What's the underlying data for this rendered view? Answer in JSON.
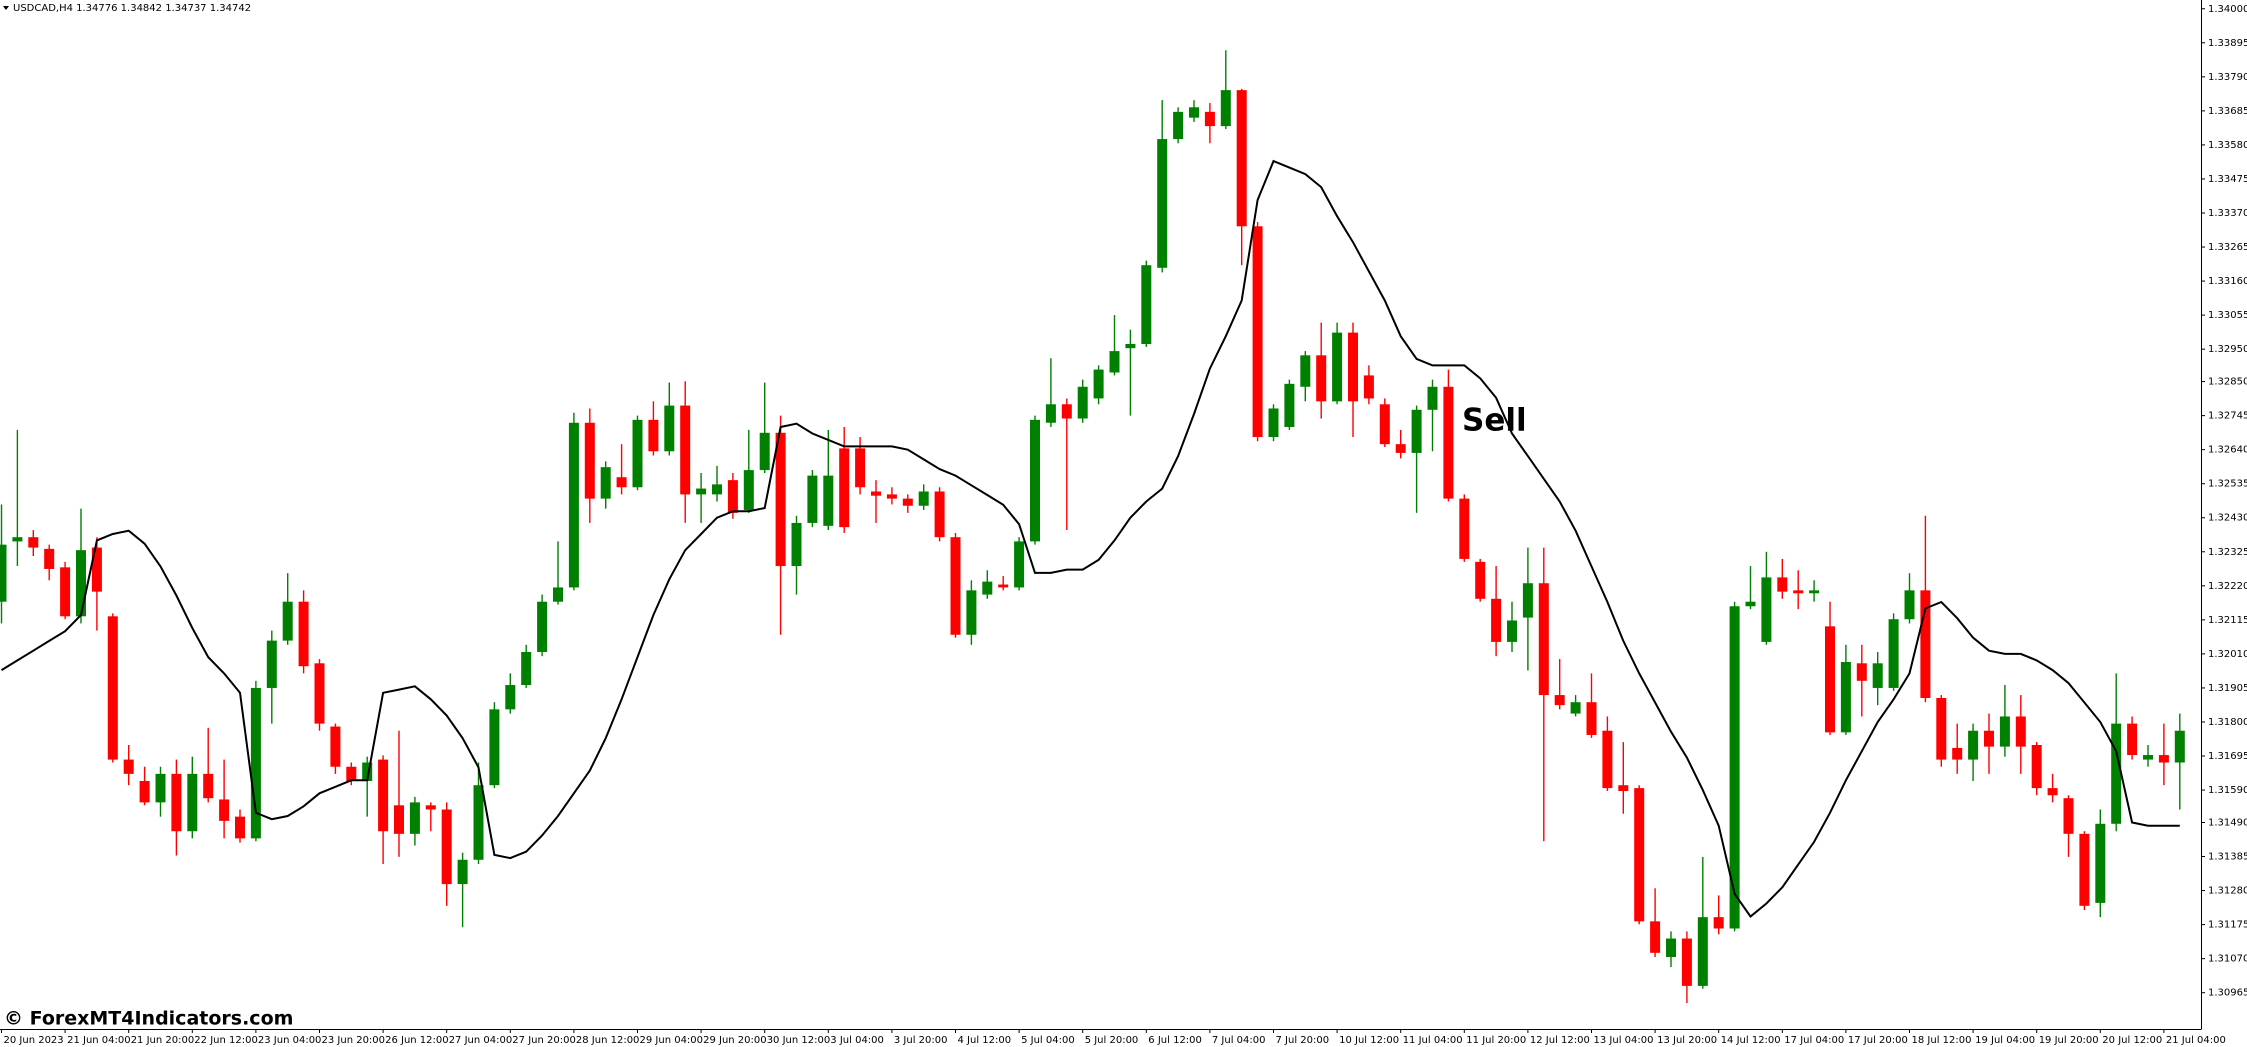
{
  "chart_data": {
    "type": "candlestick",
    "title": "USDCAD,H4  1.34776 1.34842 1.34737 1.34742",
    "annotation": "Sell",
    "watermark": "© ForexMT4Indicators.com",
    "up_color": "#008000",
    "down_color": "#ff0000",
    "line_color": "#000000",
    "ylim": [
      1.30853,
      1.34027
    ],
    "yticks": [
      {
        "value": 1.34,
        "label": "1.34000"
      },
      1.33895,
      {
        "value": 1.3379,
        "label": "1.33790"
      },
      1.33685,
      {
        "value": 1.3358,
        "label": "1.33580"
      },
      1.33475,
      {
        "value": 1.3337,
        "label": "1.33370"
      },
      1.33265,
      {
        "value": 1.3316,
        "label": "1.33160"
      },
      1.33055,
      {
        "value": 1.3295,
        "label": "1.32950"
      },
      {
        "value": 1.3285,
        "label": "1.32850"
      },
      1.32745,
      {
        "value": 1.3264,
        "label": "1.32640"
      },
      1.32535,
      {
        "value": 1.3243,
        "label": "1.32430"
      },
      1.32325,
      {
        "value": 1.3222,
        "label": "1.32220"
      },
      1.32115,
      {
        "value": 1.3201,
        "label": "1.32010"
      },
      1.31905,
      {
        "value": 1.318,
        "label": "1.31800"
      },
      1.31695,
      {
        "value": 1.3159,
        "label": "1.31590"
      },
      {
        "value": 1.3149,
        "label": "1.31490"
      },
      1.31385,
      {
        "value": 1.3128,
        "label": "1.31280"
      },
      1.31175,
      {
        "value": 1.3107,
        "label": "1.31070"
      },
      1.30965
    ],
    "categories": [
      "20 Jun 2023",
      null,
      null,
      null,
      "21 Jun 04:00",
      null,
      null,
      null,
      "21 Jun 20:00",
      null,
      null,
      null,
      "22 Jun 12:00",
      null,
      null,
      null,
      "23 Jun 04:00",
      null,
      null,
      null,
      "23 Jun 20:00",
      null,
      null,
      null,
      "26 Jun 12:00",
      null,
      null,
      null,
      "27 Jun 04:00",
      null,
      null,
      null,
      "27 Jun 20:00",
      null,
      null,
      null,
      "28 Jun 12:00",
      null,
      null,
      null,
      "29 Jun 04:00",
      null,
      null,
      null,
      "29 Jun 20:00",
      null,
      null,
      null,
      "30 Jun 12:00",
      null,
      null,
      null,
      "3 Jul 04:00",
      null,
      null,
      null,
      "3 Jul 20:00",
      null,
      null,
      null,
      "4 Jul 12:00",
      null,
      null,
      null,
      "5 Jul 04:00",
      null,
      null,
      null,
      "5 Jul 20:00",
      null,
      null,
      null,
      "6 Jul 12:00",
      null,
      null,
      null,
      "7 Jul 04:00",
      null,
      null,
      null,
      "7 Jul 20:00",
      null,
      null,
      null,
      "10 Jul 12:00",
      null,
      null,
      null,
      "11 Jul 04:00",
      null,
      null,
      null,
      "11 Jul 20:00",
      null,
      null,
      null,
      "12 Jul 12:00",
      null,
      null,
      null,
      "13 Jul 04:00",
      null,
      null,
      null,
      "13 Jul 20:00",
      null,
      null,
      null,
      "14 Jul 12:00",
      null,
      null,
      null,
      "17 Jul 04:00",
      null,
      null,
      null,
      "17 Jul 20:00",
      null,
      null,
      null,
      "18 Jul 12:00",
      null,
      null,
      null,
      "19 Jul 04:00",
      null,
      null,
      null,
      "19 Jul 20:00",
      null,
      null,
      null,
      "20 Jul 12:00",
      null,
      null,
      null,
      "21 Jul 04:00",
      null
    ],
    "open": [
      1.32171,
      1.32357,
      1.3237,
      1.32334,
      1.32277,
      1.32126,
      1.32338,
      1.32126,
      1.31684,
      1.31618,
      1.31552,
      1.3164,
      1.31463,
      1.3164,
      1.31561,
      1.31508,
      1.31441,
      1.31905,
      1.32051,
      1.32171,
      1.31981,
      1.31786,
      1.31662,
      1.31618,
      1.31684,
      1.31543,
      1.31455,
      1.31543,
      1.3153,
      1.313,
      1.31375,
      1.31605,
      1.31839,
      1.31914,
      1.32016,
      1.32171,
      1.32215,
      1.32723,
      1.32489,
      1.32555,
      1.32524,
      1.32732,
      1.32635,
      1.32776,
      1.32502,
      1.32502,
      1.32546,
      1.32454,
      1.32577,
      1.32692,
      1.32281,
      1.32414,
      1.32405,
      1.32644,
      1.32644,
      1.32511,
      1.32502,
      1.32489,
      1.32467,
      1.32511,
      1.3237,
      1.32069,
      1.32193,
      1.32224,
      1.32215,
      1.32357,
      1.32723,
      1.3278,
      1.32736,
      1.32798,
      1.32878,
      1.32953,
      1.32966,
      1.33201,
      1.33598,
      1.33664,
      1.33682,
      1.33638,
      1.33749,
      1.33329,
      1.32679,
      1.3271,
      1.32834,
      1.32931,
      1.32789,
      1.33001,
      1.32869,
      1.3278,
      1.32657,
      1.3263,
      1.32763,
      1.32834,
      1.32489,
      1.32294,
      1.3218,
      1.32047,
      1.32122,
      1.32228,
      1.31883,
      1.31826,
      1.31861,
      1.31773,
      1.31605,
      1.31596,
      1.31185,
      1.31075,
      1.31132,
      1.30986,
      1.31198,
      1.31163,
      1.32157,
      1.32047,
      1.32246,
      1.32206,
      1.32197,
      1.32095,
      1.31768,
      1.31981,
      1.31905,
      1.31905,
      1.32117,
      1.32206,
      1.31874,
      1.3172,
      1.31684,
      1.31773,
      1.31724,
      1.31817,
      1.31729,
      1.31596,
      1.31565,
      1.31455,
      1.31242,
      1.31486,
      1.31795,
      1.31684,
      1.31698,
      1.31675
    ],
    "high": [
      1.32471,
      1.32701,
      1.32392,
      1.32347,
      1.32294,
      1.32458,
      1.3237,
      1.32135,
      1.31729,
      1.31662,
      1.31662,
      1.31684,
      1.31693,
      1.31782,
      1.31684,
      1.3153,
      1.31927,
      1.32082,
      1.32259,
      1.32206,
      1.31994,
      1.31795,
      1.31675,
      1.31693,
      1.31697,
      1.31773,
      1.31569,
      1.31552,
      1.31552,
      1.31397,
      1.31675,
      1.31861,
      1.3195,
      1.32038,
      1.32193,
      1.32357,
      1.32754,
      1.32767,
      1.32604,
      1.32657,
      1.32745,
      1.32789,
      1.32847,
      1.32851,
      1.32568,
      1.3259,
      1.32568,
      1.32701,
      1.32847,
      1.32745,
      1.32436,
      1.32577,
      1.32701,
      1.3271,
      1.32679,
      1.32546,
      1.32524,
      1.32502,
      1.32533,
      1.32524,
      1.32383,
      1.32237,
      1.32268,
      1.3225,
      1.3237,
      1.32745,
      1.32922,
      1.32798,
      1.32856,
      1.329,
      1.33055,
      1.3301,
      1.33223,
      1.33718,
      1.33696,
      1.33718,
      1.33709,
      1.33872,
      1.33753,
      1.33342,
      1.3278,
      1.32856,
      1.32944,
      1.33032,
      1.33032,
      1.33032,
      1.329,
      1.32798,
      1.32701,
      1.32776,
      1.32856,
      1.32887,
      1.32502,
      1.32303,
      1.32281,
      1.32171,
      1.32338,
      1.32338,
      1.31994,
      1.31883,
      1.3195,
      1.31817,
      1.31738,
      1.31605,
      1.31287,
      1.31154,
      1.31154,
      1.31384,
      1.31265,
      1.32171,
      1.32281,
      1.32325,
      1.32303,
      1.32268,
      1.32237,
      1.32171,
      1.32038,
      1.32038,
      1.32016,
      1.32135,
      1.32259,
      1.32436,
      1.31883,
      1.31795,
      1.31795,
      1.31826,
      1.31914,
      1.31883,
      1.31738,
      1.3164,
      1.31574,
      1.31463,
      1.3153,
      1.3195,
      1.31817,
      1.31729,
      1.31795,
      1.31826
    ],
    "low": [
      1.32104,
      1.32281,
      1.32312,
      1.32237,
      1.32117,
      1.32104,
      1.32082,
      1.31675,
      1.31605,
      1.31543,
      1.31508,
      1.31388,
      1.31441,
      1.31552,
      1.31441,
      1.31428,
      1.31432,
      1.31795,
      1.32038,
      1.3195,
      1.31773,
      1.3164,
      1.31605,
      1.31508,
      1.31362,
      1.31384,
      1.31419,
      1.31463,
      1.31233,
      1.31167,
      1.31362,
      1.31596,
      1.31826,
      1.31905,
      1.32003,
      1.32162,
      1.32206,
      1.32414,
      1.32458,
      1.32502,
      1.32515,
      1.32622,
      1.32622,
      1.32414,
      1.32414,
      1.3248,
      1.32427,
      1.32445,
      1.32568,
      1.32069,
      1.32193,
      1.32401,
      1.32392,
      1.32383,
      1.32502,
      1.32414,
      1.32471,
      1.32445,
      1.32454,
      1.32357,
      1.3206,
      1.32038,
      1.3218,
      1.32206,
      1.32206,
      1.32347,
      1.3271,
      1.32392,
      1.32723,
      1.3278,
      1.32869,
      1.32745,
      1.32957,
      1.33187,
      1.33585,
      1.33651,
      1.33585,
      1.33629,
      1.33209,
      1.32666,
      1.32666,
      1.32701,
      1.32789,
      1.32736,
      1.3278,
      1.32679,
      1.3278,
      1.32648,
      1.32613,
      1.32445,
      1.32635,
      1.3248,
      1.32294,
      1.32171,
      1.32003,
      1.32016,
      1.31959,
      1.31432,
      1.31839,
      1.31817,
      1.31751,
      1.31587,
      1.31517,
      1.31176,
      1.31075,
      1.31044,
      1.30933,
      1.30977,
      1.31145,
      1.31154,
      1.32148,
      1.32038,
      1.3218,
      1.32148,
      1.32171,
      1.3176,
      1.3176,
      1.31817,
      1.31852,
      1.31896,
      1.32104,
      1.31861,
      1.31662,
      1.3164,
      1.31618,
      1.3164,
      1.31693,
      1.3164,
      1.31574,
      1.31552,
      1.31384,
      1.3122,
      1.31198,
      1.31463,
      1.31684,
      1.31662,
      1.31605,
      1.3153
    ],
    "close": [
      1.32347,
      1.3237,
      1.32338,
      1.32272,
      1.32126,
      1.3233,
      1.32202,
      1.31684,
      1.3164,
      1.31552,
      1.3164,
      1.31463,
      1.3164,
      1.31565,
      1.31495,
      1.31441,
      1.31905,
      1.32051,
      1.32171,
      1.31972,
      1.31795,
      1.31662,
      1.31618,
      1.31675,
      1.31463,
      1.31455,
      1.31552,
      1.3153,
      1.313,
      1.31375,
      1.31605,
      1.31839,
      1.31914,
      1.32016,
      1.32171,
      1.32215,
      1.32723,
      1.32489,
      1.32586,
      1.32524,
      1.32732,
      1.32635,
      1.32776,
      1.32502,
      1.3252,
      1.32533,
      1.32445,
      1.32577,
      1.32692,
      1.32281,
      1.32414,
      1.3256,
      1.3256,
      1.32401,
      1.32524,
      1.32498,
      1.32489,
      1.32467,
      1.32511,
      1.3237,
      1.32069,
      1.32206,
      1.32233,
      1.32215,
      1.32357,
      1.32732,
      1.3278,
      1.32736,
      1.32834,
      1.32887,
      1.32944,
      1.32966,
      1.33209,
      1.33598,
      1.33682,
      1.33696,
      1.33638,
      1.33749,
      1.33329,
      1.32679,
      1.32767,
      1.32843,
      1.32931,
      1.32789,
      1.33001,
      1.32789,
      1.32798,
      1.32657,
      1.3263,
      1.32763,
      1.32834,
      1.32489,
      1.32303,
      1.3218,
      1.32047,
      1.32113,
      1.32228,
      1.31883,
      1.31852,
      1.31861,
      1.3176,
      1.31596,
      1.31587,
      1.31185,
      1.31088,
      1.31132,
      1.30986,
      1.31198,
      1.31163,
      1.32157,
      1.32171,
      1.32246,
      1.32202,
      1.32197,
      1.32206,
      1.31768,
      1.31985,
      1.31927,
      1.31981,
      1.32117,
      1.32206,
      1.31874,
      1.31684,
      1.31684,
      1.31773,
      1.31724,
      1.31817,
      1.31724,
      1.31596,
      1.31574,
      1.31455,
      1.31233,
      1.31486,
      1.31795,
      1.31698,
      1.31698,
      1.31675,
      1.31773
    ],
    "line": [
      1.3196,
      1.3199,
      1.3202,
      1.3205,
      1.3208,
      1.3213,
      1.3236,
      1.3238,
      1.3239,
      1.3235,
      1.3228,
      1.3219,
      1.3209,
      1.32,
      1.3195,
      1.3189,
      1.3152,
      1.315,
      1.3151,
      1.3154,
      1.3158,
      1.316,
      1.3162,
      1.3162,
      1.3189,
      1.319,
      1.3191,
      1.3187,
      1.3182,
      1.3175,
      1.3166,
      1.3139,
      1.3138,
      1.314,
      1.3145,
      1.3151,
      1.3158,
      1.3165,
      1.3175,
      1.3187,
      1.32,
      1.3213,
      1.3224,
      1.3233,
      1.3238,
      1.3243,
      1.3245,
      1.3245,
      1.3246,
      1.3271,
      1.3272,
      1.3269,
      1.3267,
      1.3265,
      1.3265,
      1.3265,
      1.3265,
      1.3264,
      1.3261,
      1.3258,
      1.3256,
      1.3253,
      1.325,
      1.3247,
      1.3241,
      1.3226,
      1.3226,
      1.3227,
      1.3227,
      1.323,
      1.3236,
      1.3243,
      1.3248,
      1.3252,
      1.3262,
      1.3275,
      1.3289,
      1.3299,
      1.331,
      1.3341,
      1.3353,
      1.3351,
      1.3349,
      1.3345,
      1.3336,
      1.3328,
      1.3319,
      1.331,
      1.3299,
      1.3292,
      1.329,
      1.329,
      1.329,
      1.3286,
      1.328,
      1.3269,
      1.3262,
      1.3255,
      1.3248,
      1.3239,
      1.3228,
      1.3217,
      1.3205,
      1.3195,
      1.3186,
      1.3177,
      1.3169,
      1.3159,
      1.3148,
      1.3127,
      1.312,
      1.3124,
      1.3129,
      1.3136,
      1.3143,
      1.3152,
      1.3162,
      1.3171,
      1.318,
      1.3187,
      1.3195,
      1.3215,
      1.3217,
      1.3212,
      1.3206,
      1.3202,
      1.3201,
      1.3201,
      1.3199,
      1.3196,
      1.3192,
      1.3186,
      1.318,
      1.3171,
      1.3149,
      1.3148,
      1.3148,
      1.3148
    ]
  }
}
